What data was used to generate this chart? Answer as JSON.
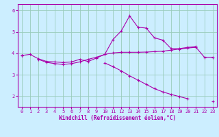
{
  "x": [
    0,
    1,
    2,
    3,
    4,
    5,
    6,
    7,
    8,
    9,
    10,
    11,
    12,
    13,
    14,
    15,
    16,
    17,
    18,
    19,
    20,
    21,
    22,
    23
  ],
  "line1": [
    3.9,
    3.95,
    3.75,
    3.62,
    3.6,
    3.57,
    3.6,
    3.72,
    3.62,
    3.78,
    3.95,
    4.02,
    4.05,
    4.05,
    4.05,
    4.06,
    4.08,
    4.1,
    4.15,
    4.2,
    4.25,
    4.28,
    3.82,
    3.82
  ],
  "line2": [
    3.9,
    null,
    3.72,
    3.58,
    3.52,
    3.48,
    3.52,
    3.6,
    3.72,
    3.82,
    3.95,
    4.65,
    5.05,
    5.75,
    5.22,
    5.18,
    4.72,
    4.62,
    4.22,
    4.22,
    4.28,
    4.32,
    null,
    null
  ],
  "line3": [
    3.9,
    null,
    null,
    null,
    null,
    null,
    null,
    null,
    null,
    null,
    3.55,
    3.38,
    3.18,
    2.95,
    2.75,
    2.55,
    2.35,
    2.2,
    2.08,
    1.98,
    1.88,
    null,
    null,
    1.75
  ],
  "color": "#aa00aa",
  "bg_color": "#cceeff",
  "grid_color": "#99ccbb",
  "xlabel": "Windchill (Refroidissement éolien,°C)",
  "xlim": [
    -0.5,
    23.5
  ],
  "ylim": [
    1.5,
    6.3
  ],
  "yticks": [
    2,
    3,
    4,
    5,
    6
  ],
  "xticks": [
    0,
    1,
    2,
    3,
    4,
    5,
    6,
    7,
    8,
    9,
    10,
    11,
    12,
    13,
    14,
    15,
    16,
    17,
    18,
    19,
    20,
    21,
    22,
    23
  ]
}
